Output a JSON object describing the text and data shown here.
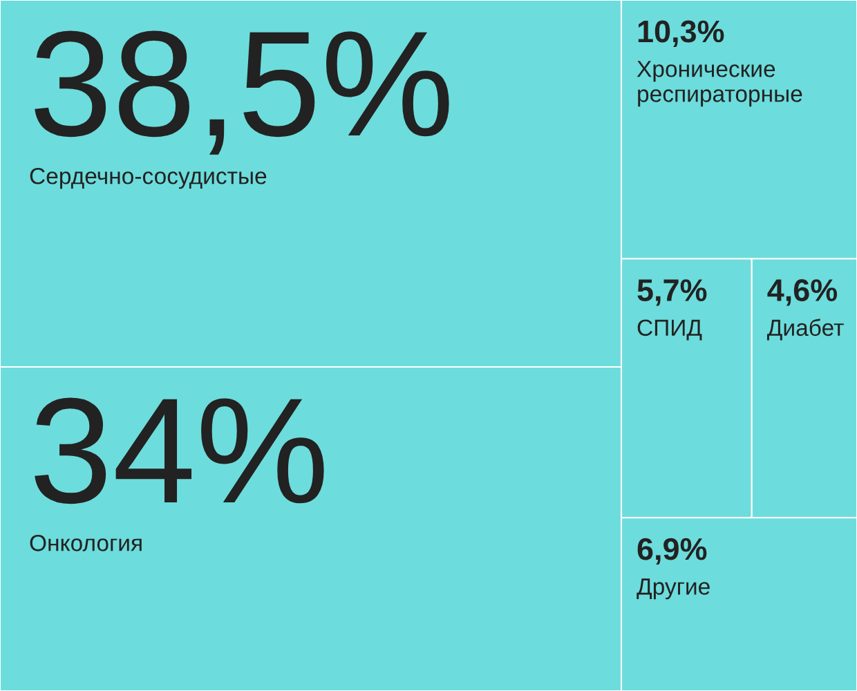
{
  "chart_data": {
    "type": "other",
    "categories": [
      "Сердечно-сосудистые",
      "Онкология",
      "Хронические респираторные",
      "СПИД",
      "Диабет",
      "Другие"
    ],
    "values": [
      38.5,
      34,
      10.3,
      5.7,
      4.6,
      6.9
    ],
    "value_labels": [
      "38,5%",
      "34%",
      "10,3%",
      "5,7%",
      "4,6%",
      "6,9%"
    ],
    "colors": [
      "#6ddcdc",
      "#6ddcdc",
      "#6ddcdc",
      "#6ddcdc",
      "#6ddcdc",
      "#6ddcdc"
    ]
  }
}
